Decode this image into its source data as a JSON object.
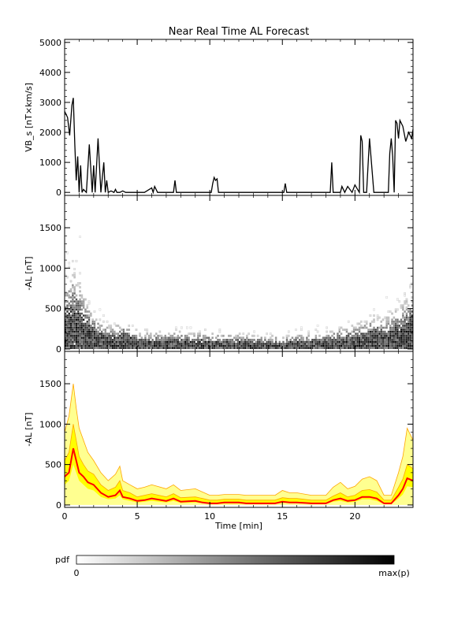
{
  "figure": {
    "title": "Near Real Time AL Forecast",
    "xlabel": "Time [min]",
    "colorbar": {
      "label": "pdf",
      "min_label": "0",
      "max_label": "max(p)"
    }
  },
  "chart_data": [
    {
      "type": "line",
      "title": "Near Real Time AL Forecast",
      "ylabel": "VB_s [nT×km/s]",
      "xlim": [
        0,
        24
      ],
      "ylim": [
        -100,
        5100
      ],
      "yticks": [
        0,
        1000,
        2000,
        3000,
        4000,
        5000
      ],
      "xticks": [
        0,
        5,
        10,
        15,
        20
      ],
      "series": [
        {
          "x": [
            0,
            0.2,
            0.35,
            0.5,
            0.6,
            0.7,
            0.8,
            0.9,
            1.0,
            1.1,
            1.2,
            1.3,
            1.5,
            1.7,
            1.9,
            2.0,
            2.1,
            2.3,
            2.5,
            2.7,
            2.8,
            2.9,
            3.0,
            3.2,
            3.4,
            3.5,
            3.6,
            3.8,
            4.0,
            4.2,
            4.4,
            5.0,
            5.5,
            6.0,
            6.1,
            6.2,
            6.4,
            7.5,
            7.6,
            7.7,
            10.1,
            10.2,
            10.3,
            10.4,
            10.5,
            10.6,
            15.1,
            15.2,
            15.3,
            18.3,
            18.4,
            18.5,
            19.0,
            19.1,
            19.3,
            19.5,
            19.8,
            20.0,
            20.3,
            20.4,
            20.5,
            20.6,
            20.8,
            21.0,
            21.3,
            22.3,
            22.4,
            22.5,
            22.6,
            22.7,
            22.8,
            22.9,
            23.0,
            23.1,
            23.3,
            23.5,
            23.7,
            23.9,
            24.0
          ],
          "y": [
            2700,
            2500,
            1900,
            2900,
            3150,
            1600,
            400,
            1200,
            0,
            900,
            0,
            100,
            0,
            1600,
            0,
            900,
            0,
            1800,
            0,
            1000,
            0,
            400,
            0,
            50,
            0,
            100,
            0,
            0,
            50,
            0,
            0,
            0,
            0,
            150,
            0,
            200,
            0,
            0,
            400,
            0,
            0,
            300,
            500,
            400,
            450,
            0,
            0,
            300,
            0,
            0,
            1000,
            0,
            0,
            200,
            0,
            200,
            0,
            250,
            0,
            1900,
            1700,
            0,
            0,
            1800,
            0,
            0,
            1300,
            1800,
            1200,
            0,
            2400,
            2300,
            1800,
            2400,
            2200,
            1700,
            2000,
            1800,
            2100
          ]
        }
      ]
    },
    {
      "type": "heatmap",
      "ylabel": "-AL [nT]",
      "xlim": [
        0,
        24
      ],
      "ylim": [
        -30,
        1900
      ],
      "yticks": [
        0,
        500,
        1000,
        1500
      ],
      "xticks": [
        0,
        5,
        10,
        15,
        20
      ],
      "colorbar_label": "pdf",
      "envelope": {
        "x": [
          0,
          0.5,
          1,
          1.5,
          2,
          3,
          4,
          5,
          6,
          8,
          10,
          12,
          14,
          16,
          18,
          19,
          20,
          21,
          22,
          23,
          24
        ],
        "median": [
          150,
          250,
          200,
          150,
          100,
          60,
          70,
          40,
          40,
          40,
          30,
          30,
          20,
          30,
          40,
          50,
          60,
          80,
          80,
          120,
          180
        ],
        "spread": [
          550,
          600,
          500,
          350,
          250,
          180,
          200,
          140,
          130,
          140,
          130,
          120,
          110,
          120,
          140,
          170,
          200,
          250,
          250,
          320,
          450
        ]
      }
    },
    {
      "type": "area",
      "ylabel": "-AL [nT]",
      "xlim": [
        0,
        24
      ],
      "ylim": [
        -30,
        1900
      ],
      "yticks": [
        0,
        500,
        1000,
        1500
      ],
      "xticks": [
        0,
        5,
        10,
        15,
        20
      ],
      "colors": {
        "median": "#ff0000",
        "band_outer": "#ffff90",
        "band_inner": "#ffff00",
        "band_edge": "#ffa500"
      },
      "series": [
        {
          "x": [
            0,
            0.3,
            0.6,
            0.8,
            1.0,
            1.3,
            1.6,
            2.0,
            2.5,
            3.0,
            3.5,
            3.8,
            4.0,
            4.5,
            5,
            5.5,
            6,
            7,
            7.5,
            8,
            9,
            9.5,
            10,
            10.5,
            11,
            12,
            12.5,
            13,
            13.5,
            14,
            14.5,
            15,
            15.5,
            16,
            17,
            18,
            18.5,
            19,
            19.5,
            20,
            20.5,
            21,
            21.5,
            22,
            22.5,
            23,
            23.3,
            23.6,
            24
          ],
          "median": [
            350,
            400,
            700,
            550,
            400,
            350,
            280,
            250,
            150,
            100,
            120,
            180,
            100,
            80,
            50,
            60,
            80,
            50,
            80,
            40,
            50,
            30,
            20,
            20,
            30,
            30,
            20,
            20,
            20,
            20,
            20,
            40,
            30,
            30,
            20,
            20,
            60,
            80,
            50,
            60,
            100,
            100,
            80,
            20,
            20,
            120,
            200,
            330,
            300
          ],
          "p25": [
            250,
            300,
            500,
            400,
            300,
            250,
            200,
            180,
            100,
            70,
            80,
            120,
            70,
            50,
            30,
            40,
            50,
            30,
            50,
            25,
            30,
            20,
            10,
            10,
            15,
            15,
            10,
            10,
            10,
            10,
            10,
            25,
            20,
            20,
            10,
            10,
            40,
            50,
            30,
            40,
            70,
            70,
            50,
            10,
            10,
            80,
            130,
            230,
            220
          ],
          "p75": [
            550,
            650,
            1000,
            800,
            600,
            500,
            420,
            380,
            250,
            180,
            220,
            300,
            180,
            150,
            100,
            120,
            140,
            100,
            140,
            90,
            100,
            80,
            60,
            60,
            70,
            70,
            60,
            60,
            60,
            60,
            60,
            90,
            80,
            80,
            60,
            60,
            110,
            150,
            100,
            120,
            180,
            190,
            160,
            60,
            60,
            220,
            320,
            500,
            450
          ],
          "max": [
            900,
            1100,
            1500,
            1200,
            950,
            800,
            650,
            550,
            400,
            300,
            380,
            480,
            300,
            250,
            200,
            220,
            250,
            200,
            250,
            180,
            200,
            160,
            120,
            120,
            130,
            130,
            120,
            120,
            120,
            120,
            120,
            180,
            150,
            150,
            120,
            120,
            220,
            280,
            200,
            230,
            320,
            350,
            300,
            120,
            120,
            400,
            600,
            950,
            800
          ]
        }
      ]
    }
  ]
}
